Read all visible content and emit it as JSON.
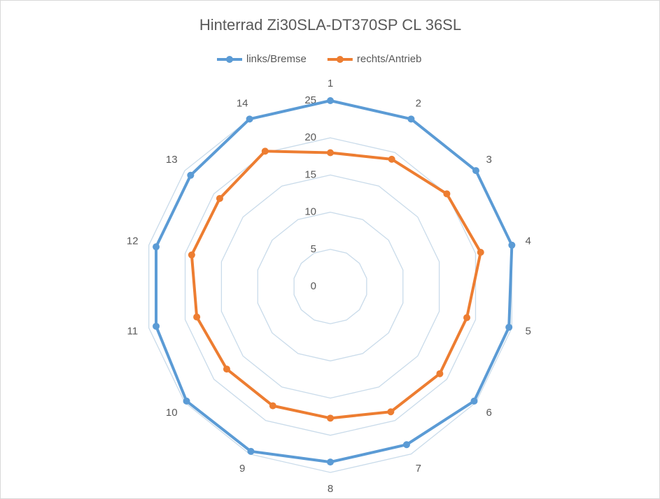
{
  "chart_data": {
    "type": "radar",
    "title": "Hinterrad  Zi30SLA-DT370SP CL 36SL",
    "categories": [
      "1",
      "2",
      "3",
      "4",
      "5",
      "6",
      "7",
      "8",
      "9",
      "10",
      "11",
      "12",
      "13",
      "14"
    ],
    "series": [
      {
        "name": "links/Bremse",
        "color": "#5b9bd5",
        "values": [
          25,
          25,
          25,
          25,
          24.6,
          24.7,
          23.6,
          23.6,
          24.6,
          24.7,
          24,
          24,
          24,
          25
        ]
      },
      {
        "name": "rechts/Antrieb",
        "color": "#ed7d31",
        "values": [
          18,
          19,
          20,
          20.7,
          18.8,
          18.8,
          18.7,
          17.7,
          17.8,
          17.8,
          18.4,
          19.1,
          19,
          20.2
        ]
      }
    ],
    "ylim": [
      0,
      25
    ],
    "yticks": [
      0,
      5,
      10,
      15,
      20,
      25
    ],
    "grid": true,
    "legend": "top"
  }
}
